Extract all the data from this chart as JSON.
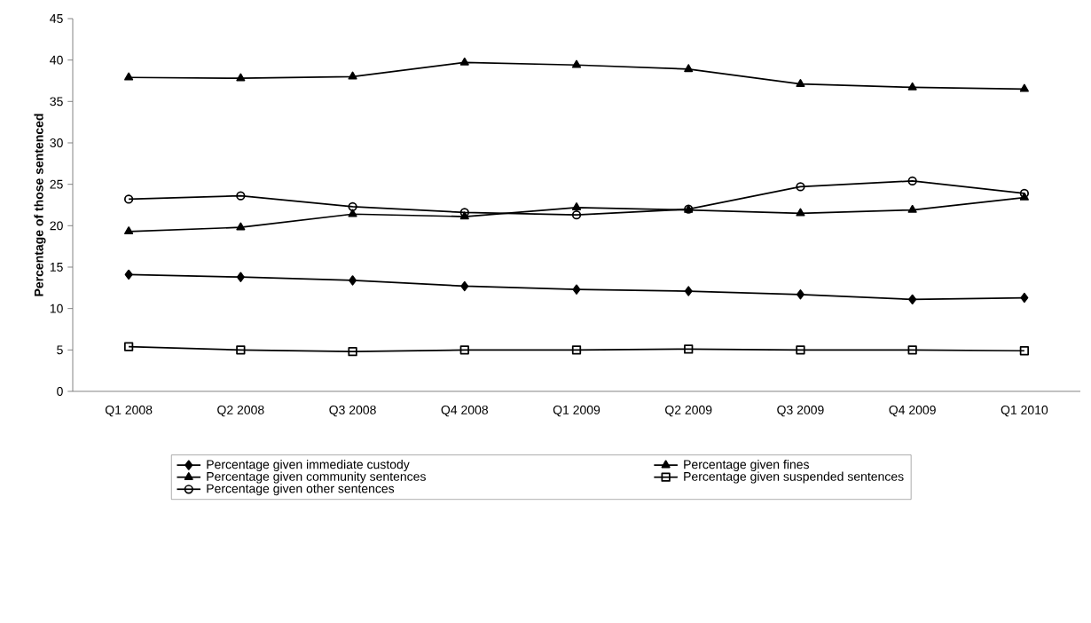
{
  "chart_data": {
    "type": "line",
    "ylabel": "Percentage of those sentenced",
    "categories": [
      "Q1 2008",
      "Q2 2008",
      "Q3 2008",
      "Q4 2008",
      "Q1 2009",
      "Q2 2009",
      "Q3 2009",
      "Q4 2009",
      "Q1 2010"
    ],
    "series": [
      {
        "name": "Percentage given immediate custody",
        "color": "#000000",
        "marker": "diamond",
        "values": [
          14.1,
          13.8,
          13.4,
          12.7,
          12.3,
          12.1,
          11.7,
          11.1,
          11.3
        ]
      },
      {
        "name": "Percentage given fines",
        "color": "#000000",
        "marker": "triangle",
        "values": [
          37.9,
          37.8,
          38.0,
          39.7,
          39.4,
          38.9,
          37.1,
          36.7,
          36.5
        ]
      },
      {
        "name": "Percentage given community sentences",
        "color": "#000000",
        "marker": "triangle",
        "values": [
          19.3,
          19.8,
          21.4,
          21.1,
          22.2,
          21.9,
          21.5,
          21.9,
          23.4
        ]
      },
      {
        "name": "Percentage given suspended sentences",
        "color": "#000000",
        "marker": "square",
        "values": [
          5.4,
          5.0,
          4.8,
          5.0,
          5.0,
          5.1,
          5.0,
          5.0,
          4.9
        ]
      },
      {
        "name": "Percentage given other sentences",
        "color": "#000000",
        "marker": "circle",
        "values": [
          23.2,
          23.6,
          22.3,
          21.6,
          21.3,
          22.0,
          24.7,
          25.4,
          23.9
        ]
      }
    ],
    "ylim": [
      0,
      45
    ],
    "yticks": [
      0,
      5,
      10,
      15,
      20,
      25,
      30,
      35,
      40,
      45
    ],
    "grid": false,
    "legend": "bottom",
    "line_style": "solid"
  }
}
